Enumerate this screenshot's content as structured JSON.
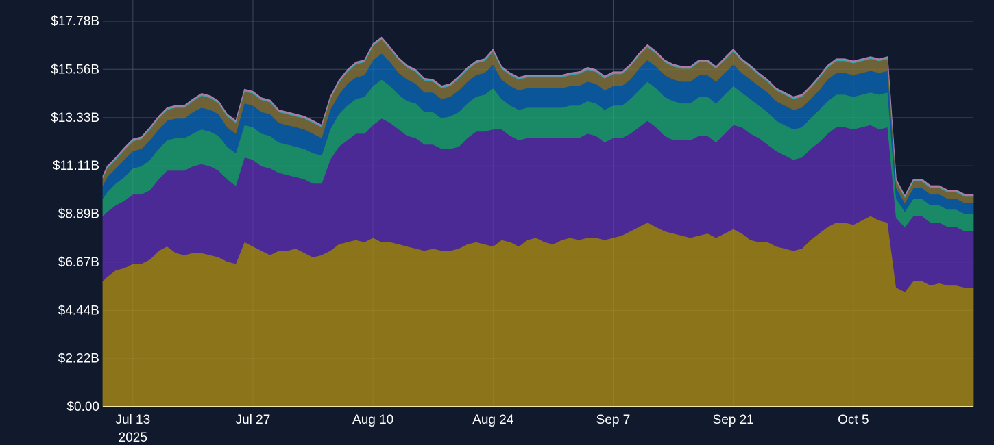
{
  "chart_data": {
    "type": "area",
    "stacked": true,
    "title": "",
    "xlabel": "",
    "ylabel": "",
    "ylim": [
      0,
      17.78
    ],
    "grid": true,
    "legend": "none",
    "y_ticks": [
      "$0.00",
      "$2.22B",
      "$4.44B",
      "$6.67B",
      "$8.89B",
      "$11.11B",
      "$13.33B",
      "$15.56B",
      "$17.78B"
    ],
    "y_tick_values": [
      0,
      2.22,
      4.44,
      6.67,
      8.89,
      11.11,
      13.33,
      15.56,
      17.78
    ],
    "x_ticks": [
      {
        "label": "Jul 13",
        "sublabel": "2025",
        "date": "2025-07-13"
      },
      {
        "label": "Jul 27",
        "sublabel": "",
        "date": "2025-07-27"
      },
      {
        "label": "Aug 10",
        "sublabel": "",
        "date": "2025-08-10"
      },
      {
        "label": "Aug 24",
        "sublabel": "",
        "date": "2025-08-24"
      },
      {
        "label": "Sep 7",
        "sublabel": "",
        "date": "2025-09-07"
      },
      {
        "label": "Sep 21",
        "sublabel": "",
        "date": "2025-09-21"
      },
      {
        "label": "Oct 5",
        "sublabel": "",
        "date": "2025-10-05"
      }
    ],
    "xlim": [
      "2025-07-09T12:00",
      "2025-10-19T00:00"
    ],
    "x": [
      "2025-07-09T12:00",
      "2025-07-10",
      "2025-07-11",
      "2025-07-12",
      "2025-07-13",
      "2025-07-14",
      "2025-07-15",
      "2025-07-16",
      "2025-07-17",
      "2025-07-18",
      "2025-07-19",
      "2025-07-20",
      "2025-07-21",
      "2025-07-22",
      "2025-07-23",
      "2025-07-24",
      "2025-07-25",
      "2025-07-26",
      "2025-07-27",
      "2025-07-28",
      "2025-07-29",
      "2025-07-30",
      "2025-07-31",
      "2025-08-01",
      "2025-08-02",
      "2025-08-03",
      "2025-08-04",
      "2025-08-05",
      "2025-08-06",
      "2025-08-07",
      "2025-08-08",
      "2025-08-09",
      "2025-08-10",
      "2025-08-11",
      "2025-08-12",
      "2025-08-13",
      "2025-08-14",
      "2025-08-15",
      "2025-08-16",
      "2025-08-17",
      "2025-08-18",
      "2025-08-19",
      "2025-08-20",
      "2025-08-21",
      "2025-08-22",
      "2025-08-23",
      "2025-08-24",
      "2025-08-25",
      "2025-08-26",
      "2025-08-27",
      "2025-08-28",
      "2025-08-29",
      "2025-08-30",
      "2025-08-31",
      "2025-09-01",
      "2025-09-02",
      "2025-09-03",
      "2025-09-04",
      "2025-09-05",
      "2025-09-06",
      "2025-09-07",
      "2025-09-08",
      "2025-09-09",
      "2025-09-10",
      "2025-09-11",
      "2025-09-12",
      "2025-09-13",
      "2025-09-14",
      "2025-09-15",
      "2025-09-16",
      "2025-09-17",
      "2025-09-18",
      "2025-09-19",
      "2025-09-20",
      "2025-09-21",
      "2025-09-22",
      "2025-09-23",
      "2025-09-24",
      "2025-09-25",
      "2025-09-26",
      "2025-09-27",
      "2025-09-28",
      "2025-09-29",
      "2025-09-30",
      "2025-10-01",
      "2025-10-02",
      "2025-10-03",
      "2025-10-04",
      "2025-10-05",
      "2025-10-06",
      "2025-10-07",
      "2025-10-08",
      "2025-10-09",
      "2025-10-10",
      "2025-10-11",
      "2025-10-12",
      "2025-10-13",
      "2025-10-14",
      "2025-10-15",
      "2025-10-16",
      "2025-10-17",
      "2025-10-18",
      "2025-10-19"
    ],
    "series": [
      {
        "color": "#8b7419",
        "values": [
          5.8,
          6.0,
          6.3,
          6.4,
          6.6,
          6.6,
          6.8,
          7.2,
          7.4,
          7.1,
          7.0,
          7.1,
          7.1,
          7.0,
          6.9,
          6.7,
          6.6,
          7.6,
          7.4,
          7.2,
          7.0,
          7.2,
          7.2,
          7.3,
          7.1,
          6.9,
          7.0,
          7.2,
          7.5,
          7.6,
          7.7,
          7.6,
          7.8,
          7.6,
          7.6,
          7.5,
          7.4,
          7.3,
          7.2,
          7.3,
          7.2,
          7.2,
          7.3,
          7.5,
          7.6,
          7.5,
          7.4,
          7.7,
          7.6,
          7.4,
          7.7,
          7.8,
          7.6,
          7.5,
          7.7,
          7.8,
          7.7,
          7.8,
          7.8,
          7.7,
          7.8,
          7.9,
          8.1,
          8.3,
          8.5,
          8.3,
          8.1,
          8.0,
          7.9,
          7.8,
          7.9,
          8.0,
          7.8,
          8.0,
          8.2,
          8.0,
          7.7,
          7.6,
          7.6,
          7.4,
          7.3,
          7.2,
          7.3,
          7.7,
          8.0,
          8.3,
          8.5,
          8.5,
          8.4,
          8.6,
          8.8,
          8.6,
          8.5,
          5.5,
          5.3,
          5.8,
          5.8,
          5.6,
          5.7,
          5.6,
          5.6,
          5.5,
          5.5
        ]
      },
      {
        "color": "#4b2a95",
        "values": [
          3.0,
          3.0,
          3.0,
          3.1,
          3.2,
          3.2,
          3.2,
          3.3,
          3.5,
          3.8,
          3.9,
          4.0,
          4.1,
          4.1,
          4.0,
          3.8,
          3.6,
          3.9,
          4.0,
          3.9,
          4.0,
          3.6,
          3.5,
          3.3,
          3.4,
          3.4,
          3.3,
          4.2,
          4.5,
          4.7,
          4.9,
          5.0,
          5.2,
          5.7,
          5.5,
          5.3,
          5.1,
          5.1,
          4.9,
          4.8,
          4.7,
          4.7,
          4.7,
          4.9,
          5.1,
          5.2,
          5.4,
          5.1,
          4.9,
          4.9,
          4.7,
          4.6,
          4.8,
          4.9,
          4.7,
          4.6,
          4.7,
          4.8,
          4.7,
          4.5,
          4.6,
          4.5,
          4.5,
          4.6,
          4.7,
          4.6,
          4.4,
          4.3,
          4.4,
          4.5,
          4.6,
          4.5,
          4.4,
          4.6,
          4.8,
          4.9,
          4.9,
          4.8,
          4.5,
          4.4,
          4.3,
          4.2,
          4.2,
          4.2,
          4.2,
          4.3,
          4.4,
          4.4,
          4.4,
          4.3,
          4.2,
          4.2,
          4.4,
          3.2,
          3.0,
          3.0,
          3.0,
          2.9,
          2.8,
          2.7,
          2.7,
          2.6,
          2.6
        ]
      },
      {
        "color": "#1a8a66",
        "values": [
          0.8,
          0.9,
          1.0,
          1.1,
          1.2,
          1.3,
          1.4,
          1.4,
          1.4,
          1.5,
          1.5,
          1.5,
          1.6,
          1.6,
          1.6,
          1.5,
          1.5,
          1.5,
          1.5,
          1.5,
          1.5,
          1.4,
          1.4,
          1.4,
          1.4,
          1.4,
          1.3,
          1.4,
          1.5,
          1.6,
          1.6,
          1.7,
          1.8,
          1.8,
          1.7,
          1.6,
          1.6,
          1.6,
          1.5,
          1.5,
          1.4,
          1.5,
          1.6,
          1.6,
          1.6,
          1.7,
          1.9,
          1.4,
          1.4,
          1.4,
          1.4,
          1.4,
          1.4,
          1.4,
          1.4,
          1.5,
          1.5,
          1.5,
          1.5,
          1.5,
          1.5,
          1.5,
          1.6,
          1.7,
          1.8,
          1.8,
          1.8,
          1.8,
          1.7,
          1.7,
          1.8,
          1.8,
          1.8,
          1.8,
          1.8,
          1.6,
          1.6,
          1.5,
          1.5,
          1.4,
          1.4,
          1.4,
          1.4,
          1.4,
          1.5,
          1.5,
          1.5,
          1.5,
          1.5,
          1.5,
          1.5,
          1.6,
          1.6,
          0.9,
          0.7,
          0.8,
          0.8,
          0.8,
          0.8,
          0.8,
          0.8,
          0.8,
          0.8
        ]
      },
      {
        "color": "#0b5698",
        "values": [
          0.6,
          0.7,
          0.7,
          0.8,
          0.8,
          0.8,
          0.9,
          0.9,
          0.9,
          0.9,
          0.9,
          1.0,
          1.0,
          1.0,
          1.0,
          0.9,
          0.9,
          1.0,
          1.0,
          1.0,
          1.0,
          0.9,
          0.9,
          0.9,
          0.9,
          0.9,
          0.8,
          0.9,
          0.9,
          1.0,
          1.0,
          1.0,
          1.2,
          1.2,
          1.1,
          1.0,
          1.0,
          0.9,
          0.9,
          0.9,
          0.9,
          0.9,
          1.0,
          1.0,
          1.0,
          1.0,
          1.1,
          0.9,
          0.9,
          0.9,
          0.9,
          0.9,
          0.9,
          0.9,
          0.9,
          0.9,
          0.9,
          0.9,
          0.9,
          0.9,
          0.9,
          0.9,
          0.9,
          1.0,
          1.0,
          1.0,
          1.0,
          1.0,
          1.0,
          1.0,
          1.0,
          1.0,
          1.0,
          1.0,
          1.0,
          0.9,
          0.9,
          0.9,
          0.9,
          0.9,
          0.9,
          0.9,
          0.9,
          0.9,
          0.9,
          1.0,
          1.0,
          1.0,
          1.0,
          1.0,
          1.0,
          1.0,
          1.0,
          0.5,
          0.4,
          0.5,
          0.5,
          0.5,
          0.5,
          0.5,
          0.5,
          0.5,
          0.5
        ]
      },
      {
        "color": "#6e6236",
        "values": [
          0.35,
          0.4,
          0.4,
          0.45,
          0.45,
          0.45,
          0.5,
          0.5,
          0.5,
          0.5,
          0.5,
          0.5,
          0.55,
          0.55,
          0.5,
          0.5,
          0.5,
          0.55,
          0.55,
          0.55,
          0.55,
          0.5,
          0.5,
          0.5,
          0.5,
          0.5,
          0.5,
          0.5,
          0.55,
          0.55,
          0.6,
          0.6,
          0.65,
          0.65,
          0.6,
          0.6,
          0.55,
          0.55,
          0.55,
          0.5,
          0.5,
          0.5,
          0.55,
          0.55,
          0.55,
          0.55,
          0.6,
          0.5,
          0.5,
          0.5,
          0.5,
          0.5,
          0.5,
          0.5,
          0.5,
          0.5,
          0.55,
          0.55,
          0.55,
          0.55,
          0.55,
          0.55,
          0.6,
          0.6,
          0.6,
          0.6,
          0.6,
          0.6,
          0.6,
          0.6,
          0.6,
          0.6,
          0.6,
          0.6,
          0.6,
          0.55,
          0.55,
          0.5,
          0.5,
          0.5,
          0.5,
          0.5,
          0.5,
          0.5,
          0.55,
          0.55,
          0.55,
          0.55,
          0.55,
          0.55,
          0.55,
          0.55,
          0.55,
          0.3,
          0.25,
          0.3,
          0.3,
          0.3,
          0.3,
          0.3,
          0.3,
          0.3,
          0.3
        ]
      },
      {
        "color": "#37a2ad",
        "values": [
          0.05,
          0.05,
          0.05,
          0.05,
          0.05,
          0.05,
          0.05,
          0.05,
          0.05,
          0.05,
          0.05,
          0.05,
          0.05,
          0.05,
          0.05,
          0.05,
          0.05,
          0.05,
          0.05,
          0.05,
          0.05,
          0.05,
          0.05,
          0.05,
          0.05,
          0.05,
          0.05,
          0.05,
          0.05,
          0.05,
          0.05,
          0.05,
          0.05,
          0.05,
          0.05,
          0.05,
          0.05,
          0.05,
          0.05,
          0.05,
          0.05,
          0.05,
          0.05,
          0.05,
          0.05,
          0.05,
          0.05,
          0.05,
          0.05,
          0.05,
          0.05,
          0.05,
          0.05,
          0.05,
          0.05,
          0.05,
          0.05,
          0.05,
          0.05,
          0.05,
          0.05,
          0.05,
          0.05,
          0.05,
          0.05,
          0.05,
          0.05,
          0.05,
          0.05,
          0.05,
          0.05,
          0.05,
          0.05,
          0.05,
          0.05,
          0.05,
          0.05,
          0.05,
          0.05,
          0.05,
          0.05,
          0.05,
          0.05,
          0.05,
          0.05,
          0.05,
          0.05,
          0.05,
          0.05,
          0.05,
          0.05,
          0.05,
          0.05,
          0.05,
          0.05,
          0.05,
          0.05,
          0.05,
          0.05,
          0.05,
          0.05,
          0.05,
          0.05
        ]
      },
      {
        "color": "#b07aa8",
        "values": [
          0.05,
          0.05,
          0.05,
          0.05,
          0.05,
          0.05,
          0.05,
          0.05,
          0.05,
          0.05,
          0.05,
          0.05,
          0.05,
          0.05,
          0.05,
          0.05,
          0.05,
          0.05,
          0.05,
          0.05,
          0.05,
          0.05,
          0.05,
          0.05,
          0.05,
          0.05,
          0.05,
          0.05,
          0.05,
          0.05,
          0.05,
          0.05,
          0.05,
          0.05,
          0.05,
          0.05,
          0.05,
          0.05,
          0.05,
          0.05,
          0.05,
          0.05,
          0.05,
          0.05,
          0.05,
          0.05,
          0.05,
          0.05,
          0.05,
          0.05,
          0.05,
          0.05,
          0.05,
          0.05,
          0.05,
          0.05,
          0.05,
          0.05,
          0.05,
          0.05,
          0.05,
          0.05,
          0.05,
          0.05,
          0.05,
          0.05,
          0.05,
          0.05,
          0.05,
          0.05,
          0.05,
          0.05,
          0.05,
          0.05,
          0.05,
          0.05,
          0.05,
          0.05,
          0.05,
          0.05,
          0.05,
          0.05,
          0.05,
          0.05,
          0.05,
          0.05,
          0.05,
          0.05,
          0.05,
          0.05,
          0.05,
          0.05,
          0.05,
          0.05,
          0.05,
          0.05,
          0.05,
          0.05,
          0.05,
          0.05,
          0.05,
          0.05,
          0.05
        ]
      }
    ]
  },
  "colors": {
    "background": "#111a2d",
    "grid": "#2c3a57",
    "text": "#ffffff",
    "baseline": "#f1e7a5"
  }
}
